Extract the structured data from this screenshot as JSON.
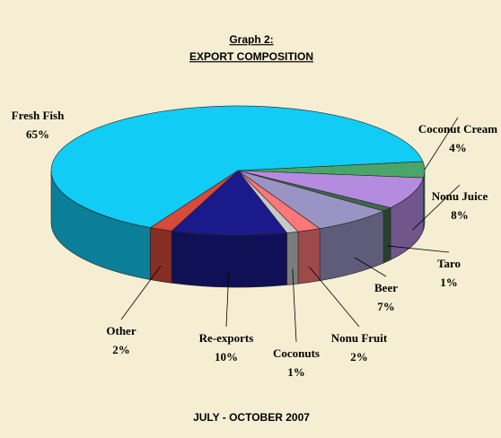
{
  "chart_data": {
    "type": "pie",
    "title": "Graph 2:",
    "subtitle": "EXPORT COMPOSITION",
    "footer": "JULY - OCTOBER 2007",
    "categories": [
      "Coconut Cream",
      "Nonu Juice",
      "Taro",
      "Beer",
      "Nonu Fruit",
      "Coconuts",
      "Re-exports",
      "Other",
      "Fresh Fish"
    ],
    "values": [
      4,
      8,
      1,
      7,
      2,
      1,
      10,
      2,
      65
    ],
    "value_labels": [
      "4%",
      "8%",
      "1%",
      "7%",
      "2%",
      "1%",
      "10%",
      "2%",
      "65%"
    ],
    "colors": [
      "#4aa56a",
      "#b58be0",
      "#3d6b4a",
      "#9a94c4",
      "#ff7777",
      "#c8c8c8",
      "#1a1a8c",
      "#d84a3a",
      "#11ccf5"
    ]
  }
}
